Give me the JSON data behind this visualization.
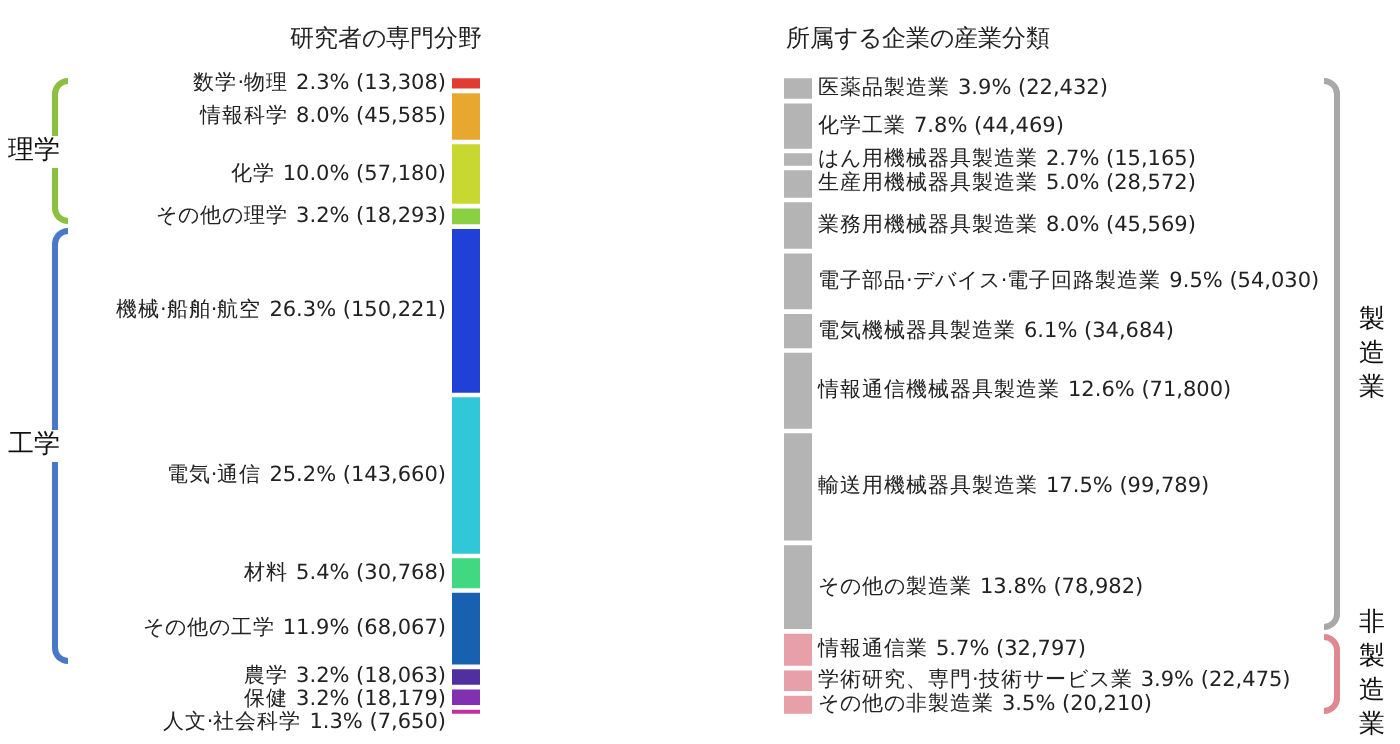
{
  "chart_data": {
    "type": "other",
    "categories": [
      "数学·物理",
      "情報科学",
      "化学",
      "その他の理学",
      "機械·船舶·航空",
      "電気·通信",
      "材料",
      "その他の工学",
      "農学",
      "保健",
      "人文·社会科学",
      "医薬品製造業",
      "化学工業",
      "はん用機械器具製造業",
      "生産用機械器具製造業",
      "業務用機械器具製造業",
      "電子部品·デバイス·電子回路製造業",
      "電気機械器具製造業",
      "情報通信機械器具製造業",
      "輸送用機械器具製造業",
      "その他の製造業",
      "情報通信業",
      "学術研究、専門·技術サービス業",
      "その他の非製造業"
    ],
    "series": [
      {
        "name": "研究者の専門分野",
        "values": [
          13308,
          45585,
          57180,
          18293,
          150221,
          143660,
          30768,
          68067,
          18063,
          18179,
          7650,
          null,
          null,
          null,
          null,
          null,
          null,
          null,
          null,
          null,
          null,
          null,
          null,
          null
        ],
        "colors": [
          "#e03c31",
          "#e8a830",
          "#c8d830",
          "#8ad040",
          "#2040d8",
          "#30c8d8",
          "#40d880",
          "#1860b0",
          "#5030a0",
          "#8030b0",
          "#c030a0",
          null,
          null,
          null,
          null,
          null,
          null,
          null,
          null,
          null,
          null,
          null,
          null,
          null
        ],
        "value_labels": [
          "2.3% (13,308)",
          "8.0% (45,585)",
          "10.0% (57,180)",
          "3.2% (18,293)",
          "26.3% (150,221)",
          "25.2% (143,660)",
          "5.4% (30,768)",
          "11.9% (68,067)",
          "3.2% (18,063)",
          "3.2% (18,179)",
          "1.3% (7,650)",
          null,
          null,
          null,
          null,
          null,
          null,
          null,
          null,
          null,
          null,
          null,
          null,
          null
        ]
      },
      {
        "name": "所属する企業の産業分類",
        "values": [
          null,
          null,
          null,
          null,
          null,
          null,
          null,
          null,
          null,
          null,
          null,
          22432,
          44469,
          15165,
          28572,
          45569,
          54030,
          34684,
          71800,
          99789,
          78982,
          32797,
          22475,
          20210
        ],
        "colors": [
          null,
          null,
          null,
          null,
          null,
          null,
          null,
          null,
          null,
          null,
          null,
          "#b4b4b4",
          "#b4b4b4",
          "#b4b4b4",
          "#b4b4b4",
          "#b4b4b4",
          "#b4b4b4",
          "#b4b4b4",
          "#b4b4b4",
          "#b4b4b4",
          "#b4b4b4",
          "#e8a0a8",
          "#e8a0a8",
          "#e8a0a8"
        ],
        "value_labels": [
          null,
          null,
          null,
          null,
          null,
          null,
          null,
          null,
          null,
          null,
          null,
          "3.9% (22,432)",
          "7.8% (44,469)",
          "2.7% (15,165)",
          "5.0% (28,572)",
          "8.0% (45,569)",
          "9.5% (54,030)",
          "6.1% (34,684)",
          "12.6% (71,800)",
          "17.5% (99,789)",
          "13.8% (78,982)",
          "5.7% (32,797)",
          "3.9% (22,475)",
          "3.5% (20,210)"
        ]
      }
    ],
    "annotations": [
      "理学",
      "工学",
      "製造業",
      "非製造業"
    ]
  }
}
